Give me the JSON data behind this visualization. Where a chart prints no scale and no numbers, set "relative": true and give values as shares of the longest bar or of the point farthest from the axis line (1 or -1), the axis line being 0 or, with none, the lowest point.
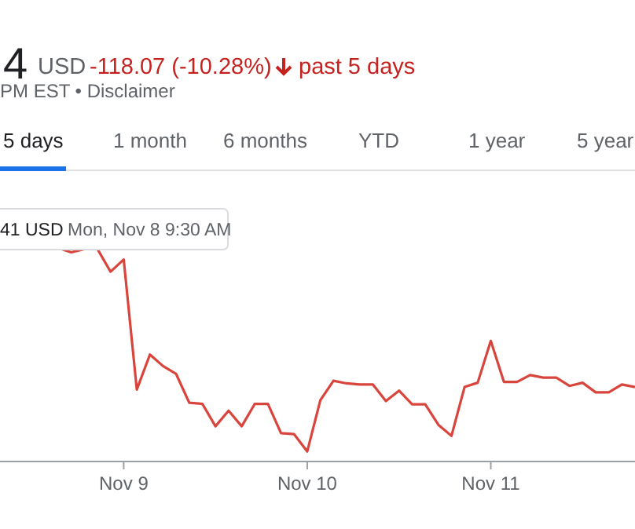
{
  "chart_data": {
    "type": "line",
    "relative": true,
    "categories": [
      null,
      null,
      null,
      null,
      null,
      "Nov 9",
      null,
      null,
      null,
      null,
      null,
      null,
      null,
      null,
      null,
      null,
      null,
      null,
      null,
      "Nov 10",
      null,
      null,
      null,
      null,
      null,
      null,
      null,
      null,
      null,
      null,
      null,
      null,
      null,
      "Nov 11",
      null,
      null,
      null,
      null,
      null,
      null,
      null,
      null,
      null,
      null,
      null
    ],
    "series": [
      {
        "color": "#d9453c",
        "values": [
          1.0,
          0.98,
          0.995,
          0.995,
          0.889,
          0.946,
          0.337,
          0.501,
          0.447,
          0.41,
          0.275,
          0.27,
          0.165,
          0.238,
          0.165,
          0.27,
          0.27,
          0.133,
          0.128,
          0.047,
          0.287,
          0.378,
          0.366,
          0.361,
          0.361,
          0.283,
          0.332,
          0.268,
          0.268,
          0.172,
          0.12,
          0.349,
          0.369,
          0.565,
          0.373,
          0.373,
          0.405,
          0.393,
          0.393,
          0.354,
          0.369,
          0.324,
          0.324,
          0.361,
          0.349
        ]
      }
    ],
    "line_style": "solid",
    "marker": "none",
    "annotations": [
      "4",
      "USD",
      "-118.07 (-10.28%)",
      "past 5 days",
      "PM EST • Disclaimer",
      "5 days",
      "1 month",
      "6 months",
      "YTD",
      "1 year",
      "5 year",
      "41 USD",
      "Mon, Nov 8 9:30 AM"
    ]
  }
}
